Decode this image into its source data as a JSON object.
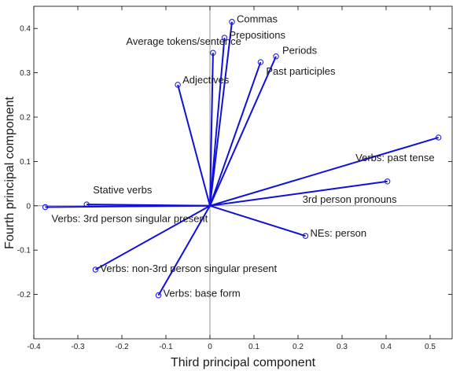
{
  "chart_data": {
    "type": "biplot",
    "xlabel": "Third principal component",
    "ylabel": "Fourth principal component",
    "xlim": [
      -0.4,
      0.55
    ],
    "ylim": [
      -0.3,
      0.45
    ],
    "xticks": [
      "-0.4",
      "-0.3",
      "-0.2",
      "-0.1",
      "0",
      "0.1",
      "0.2",
      "0.3",
      "0.4",
      "0.5"
    ],
    "yticks": [
      "-0.2",
      "-0.1",
      "0",
      "0.1",
      "0.2",
      "0.3",
      "0.4"
    ],
    "grid": false,
    "colors": {
      "vector": "#1010d8",
      "axis": "#909090",
      "frame": "#000000"
    },
    "vectors": [
      {
        "name": "Commas",
        "x": 0.05,
        "y": 0.415
      },
      {
        "name": "Prepositions",
        "x": 0.033,
        "y": 0.379
      },
      {
        "name": "Average tokens/sentence",
        "x": 0.007,
        "y": 0.345
      },
      {
        "name": "Periods",
        "x": 0.15,
        "y": 0.337
      },
      {
        "name": "Past participles",
        "x": 0.115,
        "y": 0.324
      },
      {
        "name": "Adjectives",
        "x": -0.073,
        "y": 0.273
      },
      {
        "name": "Verbs: past tense",
        "x": 0.519,
        "y": 0.154
      },
      {
        "name": "3rd person pronouns",
        "x": 0.403,
        "y": 0.055
      },
      {
        "name": "Stative verbs",
        "x": -0.28,
        "y": 0.003
      },
      {
        "name": "Verbs: 3rd person singular present",
        "x": -0.374,
        "y": -0.003
      },
      {
        "name": "NEs: person",
        "x": 0.217,
        "y": -0.068
      },
      {
        "name": "Verbs: non-3rd person singular present",
        "x": -0.26,
        "y": -0.144
      },
      {
        "name": "Verbs: base form",
        "x": -0.117,
        "y": -0.202
      }
    ]
  }
}
